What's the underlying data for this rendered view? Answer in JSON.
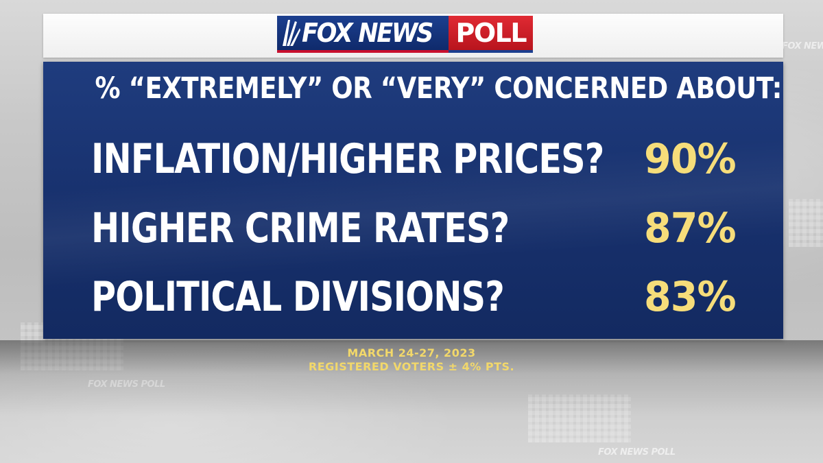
{
  "logo": {
    "brand": "FOX NEWS",
    "product": "POLL"
  },
  "chart_data": {
    "type": "table",
    "title": "% “EXTREMELY” OR “VERY” CONCERNED ABOUT:",
    "rows": [
      {
        "label": "INFLATION/HIGHER PRICES?",
        "value": 90,
        "display": "90%"
      },
      {
        "label": "HIGHER CRIME RATES?",
        "value": 87,
        "display": "87%"
      },
      {
        "label": "POLITICAL DIVISIONS?",
        "value": 83,
        "display": "83%"
      }
    ]
  },
  "footer": {
    "dates": "MARCH 24-27, 2023",
    "sample": "REGISTERED VOTERS ± 4% PTS."
  },
  "colors": {
    "panel": "#1a3572",
    "label": "#ffffff",
    "value": "#f6dd7a",
    "footer_text": "#f2d86a",
    "logo_blue": "#1c3f8f",
    "logo_red": "#c8102e"
  }
}
